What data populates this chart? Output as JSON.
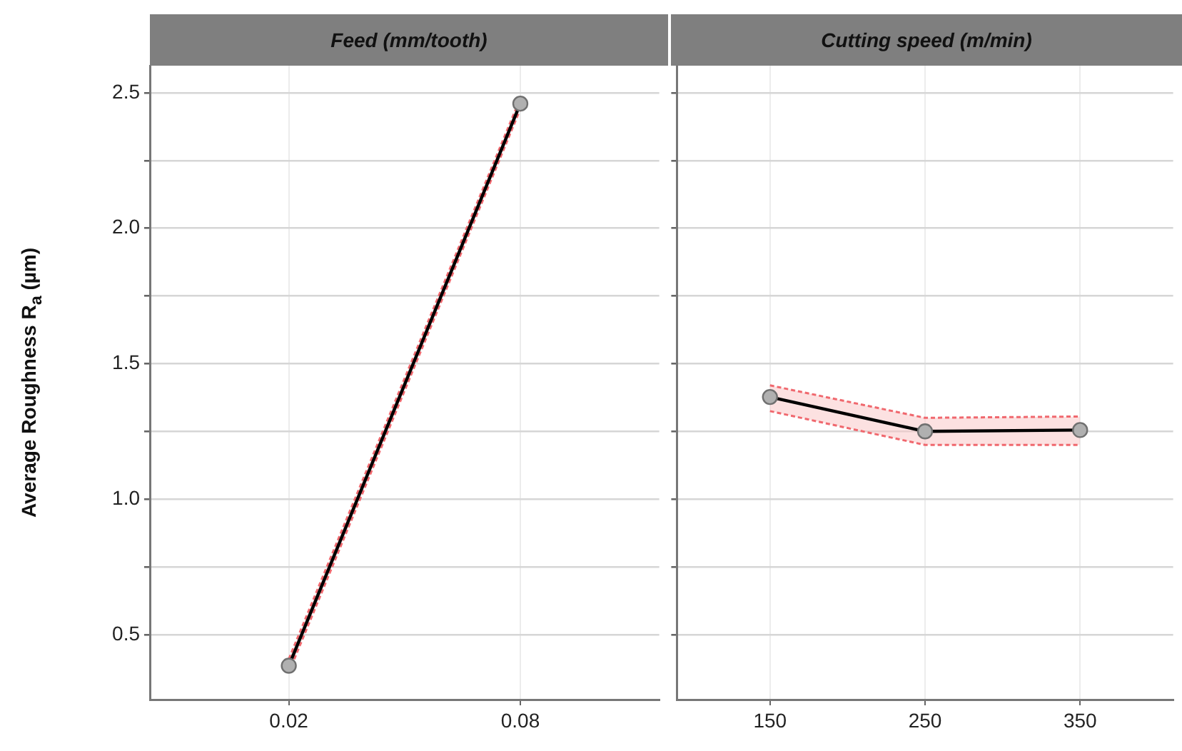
{
  "chart_data": [
    {
      "type": "line",
      "title": "Feed (mm/tooth)",
      "ylabel": "Average Roughness R$_{a}$ (µm)",
      "categories": [
        "0.02",
        "0.08"
      ],
      "series": [
        {
          "color": "#000000",
          "values": [
            0.385,
            2.46
          ],
          "lower": [
            0.36,
            2.44
          ],
          "upper": [
            0.41,
            2.48
          ]
        },
        {
          "color": "#f0686e",
          "values": [
            0.41,
            2.48
          ],
          "line_style": "dashed",
          "marker": "none"
        },
        {
          "color": "#f0686e",
          "values": [
            0.36,
            2.44
          ],
          "line_style": "dashed",
          "marker": "none"
        }
      ],
      "ylim": [
        0.26,
        2.6
      ],
      "yticks": [
        {
          "value": 0.5,
          "label": "0.5"
        },
        {
          "value": 0.75,
          "label": null
        },
        {
          "value": 1.0,
          "label": "1.0"
        },
        {
          "value": 1.25,
          "label": null
        },
        {
          "value": 1.5,
          "label": "1.5"
        },
        {
          "value": 1.75,
          "label": null
        },
        {
          "value": 2.0,
          "label": "2.0"
        },
        {
          "value": 2.25,
          "label": null
        },
        {
          "value": 2.5,
          "label": "2.5"
        }
      ],
      "grid": true,
      "legend": false,
      "marker": "circle",
      "line_style": "solid"
    },
    {
      "type": "line",
      "title": "Cutting speed (m/min)",
      "categories": [
        "150",
        "250",
        "350"
      ],
      "series": [
        {
          "color": "#000000",
          "values": [
            1.377,
            1.25,
            1.255
          ],
          "lower": [
            1.325,
            1.2,
            1.2
          ],
          "upper": [
            1.42,
            1.3,
            1.305
          ]
        },
        {
          "color": "#f0686e",
          "values": [
            1.42,
            1.3,
            1.305
          ],
          "line_style": "dashed",
          "marker": "none"
        },
        {
          "color": "#f0686e",
          "values": [
            1.325,
            1.2,
            1.2
          ],
          "line_style": "dashed",
          "marker": "none"
        }
      ],
      "ylim": [
        0.26,
        2.6
      ],
      "yticks": [
        {
          "value": 0.5,
          "label": null
        },
        {
          "value": 0.75,
          "label": null
        },
        {
          "value": 1.0,
          "label": null
        },
        {
          "value": 1.25,
          "label": null
        },
        {
          "value": 1.5,
          "label": null
        },
        {
          "value": 1.75,
          "label": null
        },
        {
          "value": 2.0,
          "label": null
        },
        {
          "value": 2.25,
          "label": null
        },
        {
          "value": 2.5,
          "label": null
        }
      ],
      "tick_labels": "x",
      "grid": true,
      "legend": false,
      "marker": "circle",
      "line_style": "solid"
    }
  ]
}
